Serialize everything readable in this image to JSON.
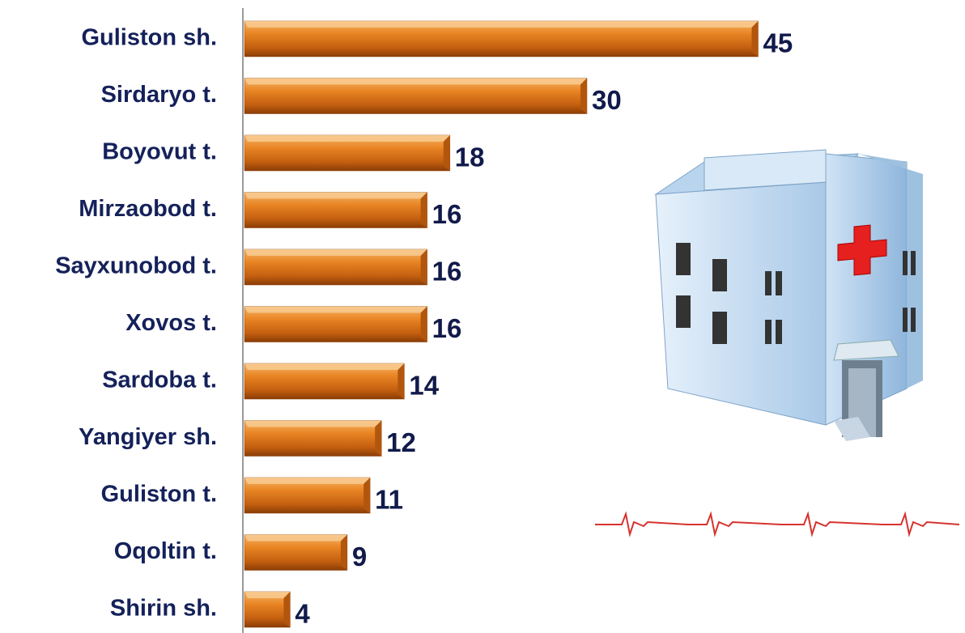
{
  "chart_data": {
    "type": "bar",
    "orientation": "horizontal",
    "categories": [
      "Guliston sh.",
      "Sirdaryo t.",
      "Boyovut t.",
      "Mirzaobod t.",
      "Sayxunobod t.",
      "Xovos t.",
      "Sardoba t.",
      "Yangiyer sh.",
      "Guliston t.",
      "Oqoltin t.",
      "Shirin sh."
    ],
    "values": [
      45,
      30,
      18,
      16,
      16,
      16,
      14,
      12,
      11,
      9,
      4
    ],
    "color": "#e07a1e"
  }
}
